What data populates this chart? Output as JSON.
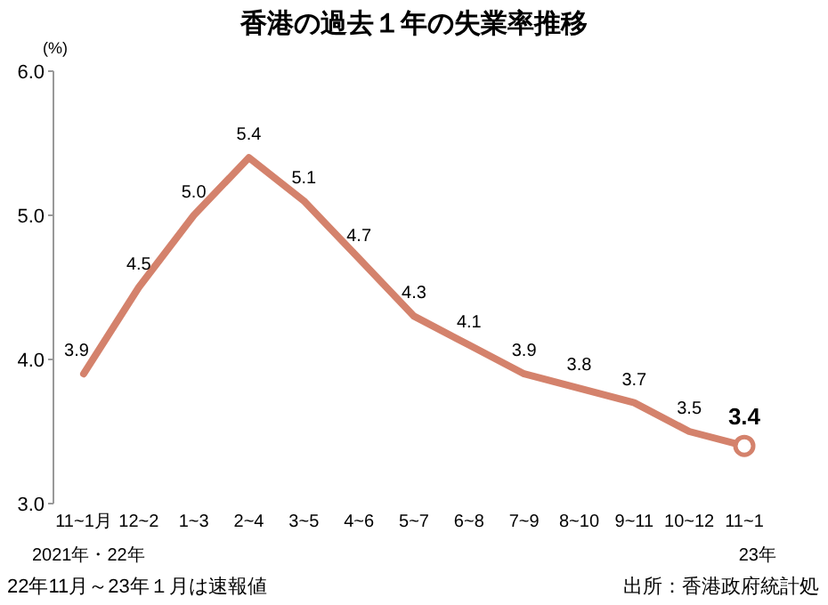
{
  "chart_data": {
    "type": "line",
    "title": "香港の過去１年の失業率推移",
    "ylabel": "(%)",
    "categories": [
      "11~1月",
      "12~2",
      "1~3",
      "2~4",
      "3~5",
      "4~6",
      "5~7",
      "6~8",
      "7~9",
      "8~10",
      "9~11",
      "10~12",
      "11~1"
    ],
    "series": [
      {
        "color": "#d4826c",
        "values": [
          3.9,
          4.5,
          5.0,
          5.4,
          5.1,
          4.7,
          4.3,
          4.1,
          3.9,
          3.8,
          3.7,
          3.5,
          3.4
        ]
      }
    ],
    "ylim": [
      3,
      6
    ],
    "yticks": [
      {
        "value": 3,
        "label": "3.0"
      },
      {
        "value": 4,
        "label": "4.0"
      },
      {
        "value": 5,
        "label": "5.0"
      },
      {
        "value": 6,
        "label": "6.0"
      }
    ],
    "value_labels": [
      "3.9",
      "4.5",
      "5.0",
      "5.4",
      "5.1",
      "4.7",
      "4.3",
      "4.1",
      "3.9",
      "3.8",
      "3.7",
      "3.5",
      "3.4"
    ],
    "grid": false,
    "marker": "none",
    "line_style": "solid",
    "annotations": [
      "2021年・22年",
      "23年",
      "22年11月～23年１月は速報値",
      "出所：香港政府統計処"
    ]
  }
}
